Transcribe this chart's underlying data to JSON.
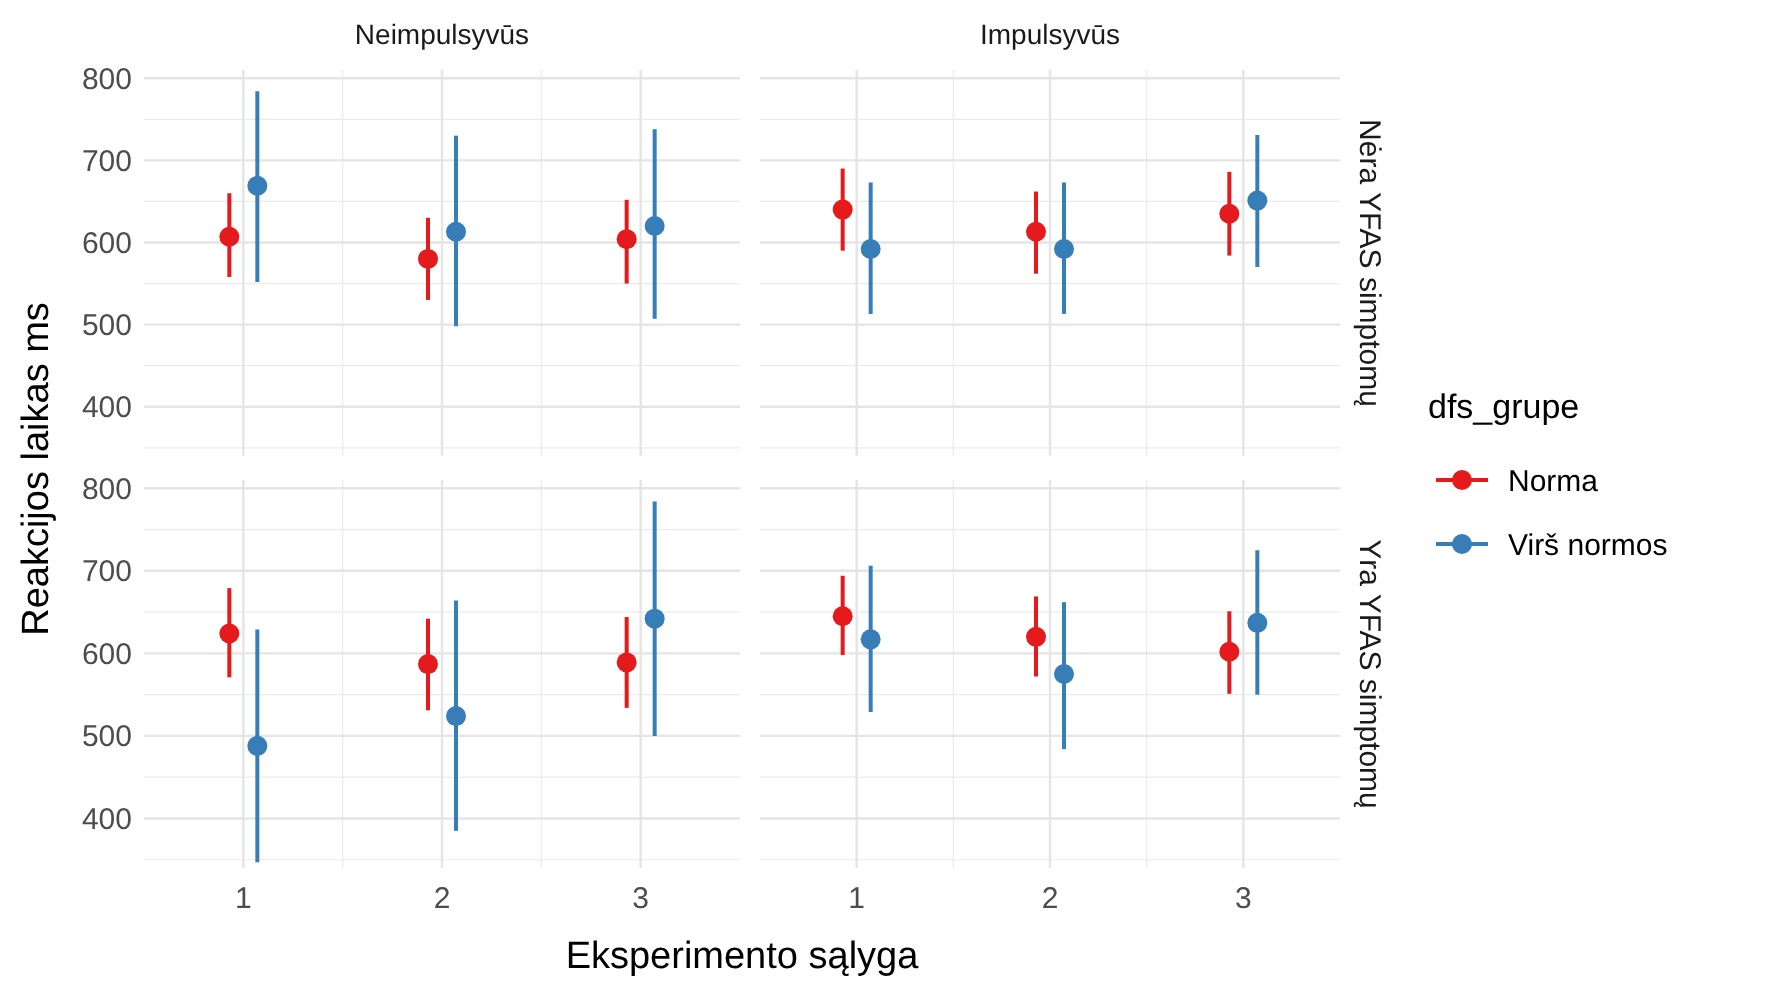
{
  "chart_data": [
    {
      "type": "scatter",
      "title": "Neimpulsyvūs",
      "categories": [
        "1",
        "2",
        "3"
      ],
      "ylim": [
        340,
        810
      ],
      "yticks": [
        400,
        500,
        600,
        700,
        800
      ],
      "grid": true,
      "marker": "circle",
      "tick_labels": "y",
      "series": [
        {
          "color": "#e41a1c",
          "values": [
            607,
            580,
            604
          ],
          "errors": [
            [
              558,
              660
            ],
            [
              530,
              630
            ],
            [
              550,
              652
            ]
          ]
        },
        {
          "color": "#377eb8",
          "values": [
            669,
            613,
            620
          ],
          "errors": [
            [
              552,
              784
            ],
            [
              498,
              730
            ],
            [
              507,
              738
            ]
          ]
        }
      ]
    },
    {
      "type": "scatter",
      "title": "Impulsyvūs",
      "y2label": "Nėra YFAS simptomų",
      "categories": [
        "1",
        "2",
        "3"
      ],
      "ylim": [
        340,
        810
      ],
      "yticks": [
        400,
        500,
        600,
        700,
        800
      ],
      "grid": true,
      "marker": "circle",
      "tick_labels": false,
      "legend": "right",
      "legend_title": "dfs_grupe",
      "series": [
        {
          "name": "Norma",
          "color": "#e41a1c",
          "values": [
            640,
            613,
            635
          ],
          "errors": [
            [
              590,
              690
            ],
            [
              562,
              662
            ],
            [
              584,
              686
            ]
          ]
        },
        {
          "name": "Virš normos",
          "color": "#377eb8",
          "values": [
            592,
            592,
            651
          ],
          "errors": [
            [
              513,
              673
            ],
            [
              513,
              673
            ],
            [
              570,
              731
            ]
          ]
        }
      ]
    },
    {
      "type": "scatter",
      "xlabel": "Eksperimento sąlyga",
      "ylabel": "Reakcijos laikas ms",
      "categories": [
        "1",
        "2",
        "3"
      ],
      "ylim": [
        340,
        810
      ],
      "yticks": [
        400,
        500,
        600,
        700,
        800
      ],
      "grid": true,
      "marker": "circle",
      "series": [
        {
          "color": "#e41a1c",
          "values": [
            624,
            587,
            589
          ],
          "errors": [
            [
              571,
              679
            ],
            [
              531,
              642
            ],
            [
              534,
              644
            ]
          ]
        },
        {
          "color": "#377eb8",
          "values": [
            488,
            524,
            642
          ],
          "errors": [
            [
              347,
              629
            ],
            [
              385,
              664
            ],
            [
              500,
              784
            ]
          ]
        }
      ]
    },
    {
      "type": "scatter",
      "y2label": "Yra YFAS simptomų",
      "categories": [
        "1",
        "2",
        "3"
      ],
      "ylim": [
        340,
        810
      ],
      "yticks": [
        400,
        500,
        600,
        700,
        800
      ],
      "grid": true,
      "marker": "circle",
      "tick_labels": "x",
      "series": [
        {
          "color": "#e41a1c",
          "values": [
            645,
            620,
            602
          ],
          "errors": [
            [
              598,
              694
            ],
            [
              572,
              669
            ],
            [
              551,
              651
            ]
          ]
        },
        {
          "color": "#377eb8",
          "values": [
            617,
            575,
            637
          ],
          "errors": [
            [
              529,
              706
            ],
            [
              484,
              662
            ],
            [
              550,
              725
            ]
          ]
        }
      ]
    }
  ]
}
